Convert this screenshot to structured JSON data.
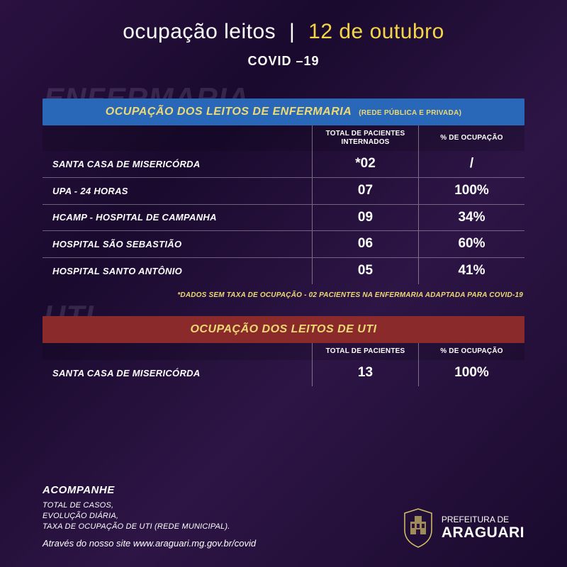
{
  "header": {
    "title": "ocupação leitos",
    "separator": "|",
    "date": "12 de outubro",
    "subtitle": "COVID –19"
  },
  "enfermaria": {
    "ghost": "ENFERMARIA",
    "section_title": "OCUPAÇÃO DOS LEITOS DE ENFERMARIA",
    "section_sub": "(REDE PÚBLICA E PRIVADA)",
    "col1": "TOTAL DE PACIENTES INTERNADOS",
    "col2": "% DE OCUPAÇÃO",
    "rows": [
      {
        "name": "SANTA CASA DE MISERICÓRDA",
        "patients": "*02",
        "occ": "/"
      },
      {
        "name": "UPA - 24 HORAS",
        "patients": "07",
        "occ": "100%"
      },
      {
        "name": "HCAMP - HOSPITAL DE CAMPANHA",
        "patients": "09",
        "occ": "34%"
      },
      {
        "name": "HOSPITAL SÃO SEBASTIÃO",
        "patients": "06",
        "occ": "60%"
      },
      {
        "name": "HOSPITAL SANTO ANTÔNIO",
        "patients": "05",
        "occ": "41%"
      }
    ],
    "footnote": "*DADOS SEM TAXA DE OCUPAÇÃO - 02 PACIENTES NA ENFERMARIA ADAPTADA PARA COVID-19"
  },
  "uti": {
    "ghost": "UTI",
    "section_title": "OCUPAÇÃO DOS LEITOS DE UTI",
    "col1": "TOTAL DE PACIENTES",
    "col2": "% DE OCUPAÇÃO",
    "rows": [
      {
        "name": "SANTA CASA DE MISERICÓRDA",
        "patients": "13",
        "occ": "100%"
      }
    ]
  },
  "footer": {
    "acomp": "ACOMPANHE",
    "line1": "TOTAL DE CASOS,",
    "line2": "EVOLUÇÃO DIÁRIA,",
    "line3": "TAXA DE OCUPAÇÃO DE UTI (REDE MUNICIPAL).",
    "site_prefix": "Através do nosso site ",
    "site": "www.araguari.mg.gov.br/covid",
    "city_pre": "PREFEITURA DE",
    "city": "ARAGUARI"
  },
  "colors": {
    "header_blue": "#2968b8",
    "header_red": "#8a2a2a",
    "accent_yellow": "#edda75",
    "date_yellow": "#f5d547"
  }
}
